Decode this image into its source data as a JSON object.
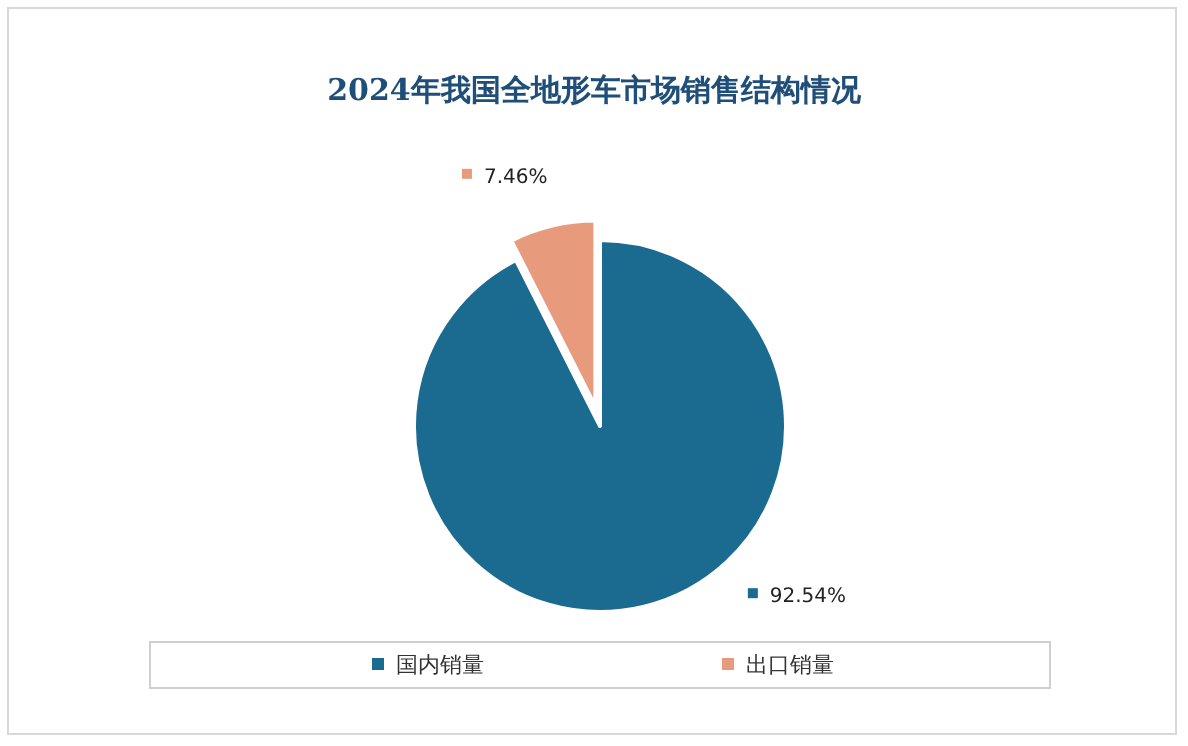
{
  "chart_data": {
    "type": "pie",
    "title": "2024年我国全地形车市场销售结构情况",
    "categories": [
      "国内销量",
      "出口销量"
    ],
    "values": [
      92.54,
      7.46
    ],
    "colors": [
      "#1b6a90",
      "#e89a7c"
    ],
    "value_labels": [
      "92.54%",
      "7.46%"
    ],
    "legend": "bottom"
  }
}
